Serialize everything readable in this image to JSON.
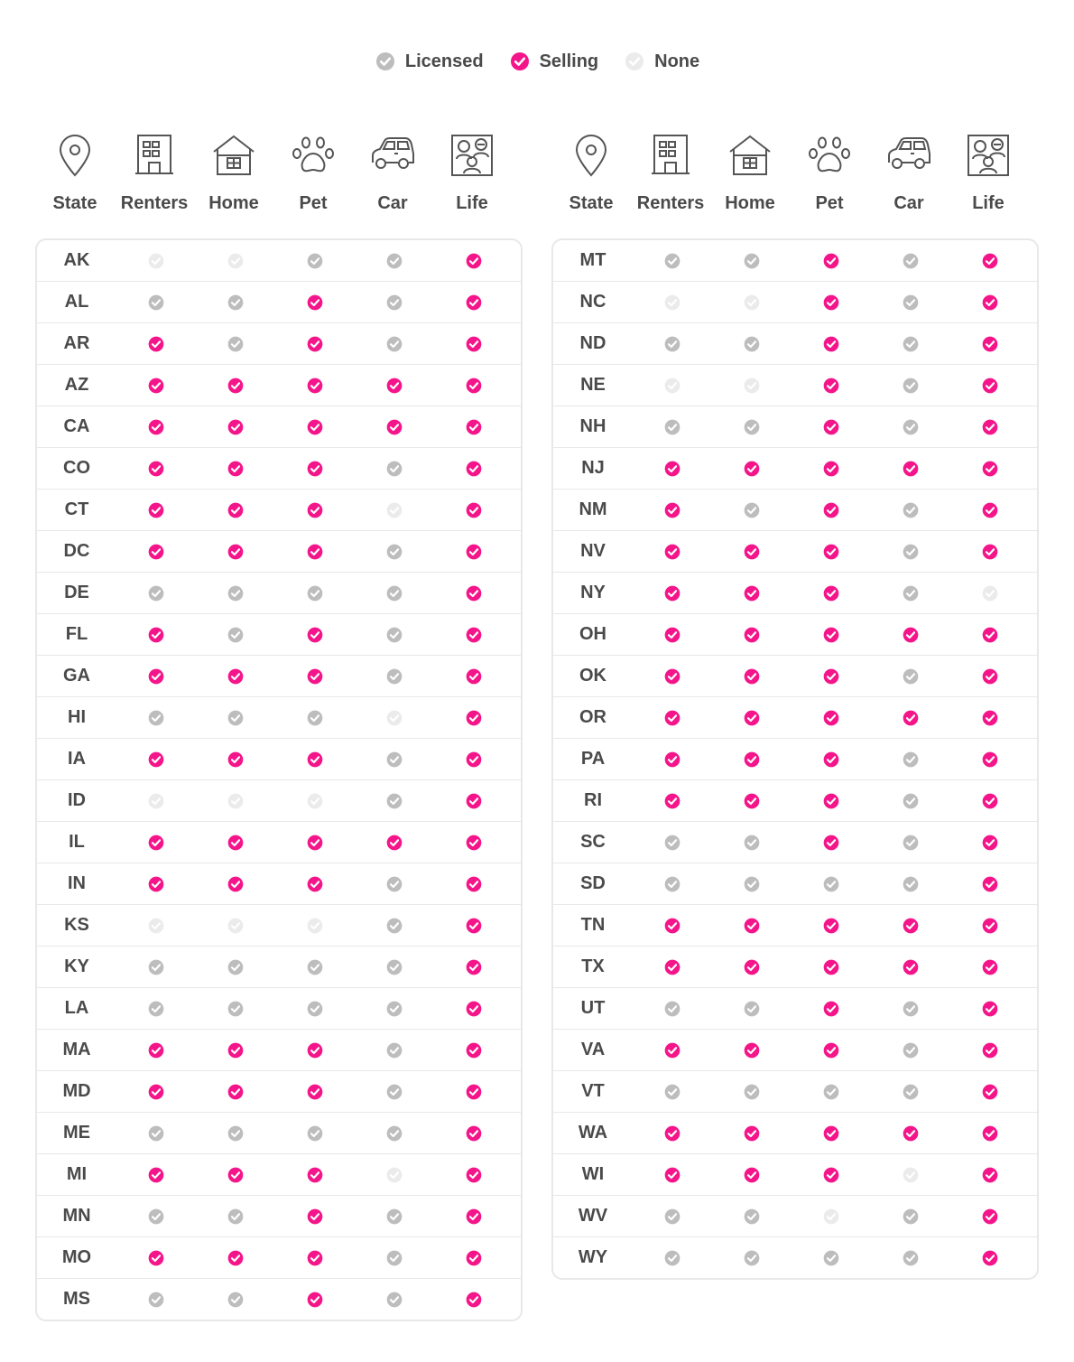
{
  "colors": {
    "licensed": "#bdbdbd",
    "selling": "#f5158a",
    "none": "#ebebeb"
  },
  "legend": [
    {
      "status": "licensed",
      "label": "Licensed"
    },
    {
      "status": "selling",
      "label": "Selling"
    },
    {
      "status": "none",
      "label": "None"
    }
  ],
  "columns": [
    {
      "label": "State",
      "icon": "location-pin-icon"
    },
    {
      "label": "Renters",
      "icon": "apartment-building-icon"
    },
    {
      "label": "Home",
      "icon": "house-icon"
    },
    {
      "label": "Pet",
      "icon": "paw-print-icon"
    },
    {
      "label": "Car",
      "icon": "car-icon"
    },
    {
      "label": "Life",
      "icon": "family-portrait-icon"
    }
  ],
  "left_table": [
    {
      "state": "AK",
      "status": [
        "none",
        "none",
        "licensed",
        "licensed",
        "selling"
      ]
    },
    {
      "state": "AL",
      "status": [
        "licensed",
        "licensed",
        "selling",
        "licensed",
        "selling"
      ]
    },
    {
      "state": "AR",
      "status": [
        "selling",
        "licensed",
        "selling",
        "licensed",
        "selling"
      ]
    },
    {
      "state": "AZ",
      "status": [
        "selling",
        "selling",
        "selling",
        "selling",
        "selling"
      ]
    },
    {
      "state": "CA",
      "status": [
        "selling",
        "selling",
        "selling",
        "selling",
        "selling"
      ]
    },
    {
      "state": "CO",
      "status": [
        "selling",
        "selling",
        "selling",
        "licensed",
        "selling"
      ]
    },
    {
      "state": "CT",
      "status": [
        "selling",
        "selling",
        "selling",
        "none",
        "selling"
      ]
    },
    {
      "state": "DC",
      "status": [
        "selling",
        "selling",
        "selling",
        "licensed",
        "selling"
      ]
    },
    {
      "state": "DE",
      "status": [
        "licensed",
        "licensed",
        "licensed",
        "licensed",
        "selling"
      ]
    },
    {
      "state": "FL",
      "status": [
        "selling",
        "licensed",
        "selling",
        "licensed",
        "selling"
      ]
    },
    {
      "state": "GA",
      "status": [
        "selling",
        "selling",
        "selling",
        "licensed",
        "selling"
      ]
    },
    {
      "state": "HI",
      "status": [
        "licensed",
        "licensed",
        "licensed",
        "none",
        "selling"
      ]
    },
    {
      "state": "IA",
      "status": [
        "selling",
        "selling",
        "selling",
        "licensed",
        "selling"
      ]
    },
    {
      "state": "ID",
      "status": [
        "none",
        "none",
        "none",
        "licensed",
        "selling"
      ]
    },
    {
      "state": "IL",
      "status": [
        "selling",
        "selling",
        "selling",
        "selling",
        "selling"
      ]
    },
    {
      "state": "IN",
      "status": [
        "selling",
        "selling",
        "selling",
        "licensed",
        "selling"
      ]
    },
    {
      "state": "KS",
      "status": [
        "none",
        "none",
        "none",
        "licensed",
        "selling"
      ]
    },
    {
      "state": "KY",
      "status": [
        "licensed",
        "licensed",
        "licensed",
        "licensed",
        "selling"
      ]
    },
    {
      "state": "LA",
      "status": [
        "licensed",
        "licensed",
        "licensed",
        "licensed",
        "selling"
      ]
    },
    {
      "state": "MA",
      "status": [
        "selling",
        "selling",
        "selling",
        "licensed",
        "selling"
      ]
    },
    {
      "state": "MD",
      "status": [
        "selling",
        "selling",
        "selling",
        "licensed",
        "selling"
      ]
    },
    {
      "state": "ME",
      "status": [
        "licensed",
        "licensed",
        "licensed",
        "licensed",
        "selling"
      ]
    },
    {
      "state": "MI",
      "status": [
        "selling",
        "selling",
        "selling",
        "none",
        "selling"
      ]
    },
    {
      "state": "MN",
      "status": [
        "licensed",
        "licensed",
        "selling",
        "licensed",
        "selling"
      ]
    },
    {
      "state": "MO",
      "status": [
        "selling",
        "selling",
        "selling",
        "licensed",
        "selling"
      ]
    },
    {
      "state": "MS",
      "status": [
        "licensed",
        "licensed",
        "selling",
        "licensed",
        "selling"
      ]
    }
  ],
  "right_table": [
    {
      "state": "MT",
      "status": [
        "licensed",
        "licensed",
        "selling",
        "licensed",
        "selling"
      ]
    },
    {
      "state": "NC",
      "status": [
        "none",
        "none",
        "selling",
        "licensed",
        "selling"
      ]
    },
    {
      "state": "ND",
      "status": [
        "licensed",
        "licensed",
        "selling",
        "licensed",
        "selling"
      ]
    },
    {
      "state": "NE",
      "status": [
        "none",
        "none",
        "selling",
        "licensed",
        "selling"
      ]
    },
    {
      "state": "NH",
      "status": [
        "licensed",
        "licensed",
        "selling",
        "licensed",
        "selling"
      ]
    },
    {
      "state": "NJ",
      "status": [
        "selling",
        "selling",
        "selling",
        "selling",
        "selling"
      ]
    },
    {
      "state": "NM",
      "status": [
        "selling",
        "licensed",
        "selling",
        "licensed",
        "selling"
      ]
    },
    {
      "state": "NV",
      "status": [
        "selling",
        "selling",
        "selling",
        "licensed",
        "selling"
      ]
    },
    {
      "state": "NY",
      "status": [
        "selling",
        "selling",
        "selling",
        "licensed",
        "none"
      ]
    },
    {
      "state": "OH",
      "status": [
        "selling",
        "selling",
        "selling",
        "selling",
        "selling"
      ]
    },
    {
      "state": "OK",
      "status": [
        "selling",
        "selling",
        "selling",
        "licensed",
        "selling"
      ]
    },
    {
      "state": "OR",
      "status": [
        "selling",
        "selling",
        "selling",
        "selling",
        "selling"
      ]
    },
    {
      "state": "PA",
      "status": [
        "selling",
        "selling",
        "selling",
        "licensed",
        "selling"
      ]
    },
    {
      "state": "RI",
      "status": [
        "selling",
        "selling",
        "selling",
        "licensed",
        "selling"
      ]
    },
    {
      "state": "SC",
      "status": [
        "licensed",
        "licensed",
        "selling",
        "licensed",
        "selling"
      ]
    },
    {
      "state": "SD",
      "status": [
        "licensed",
        "licensed",
        "licensed",
        "licensed",
        "selling"
      ]
    },
    {
      "state": "TN",
      "status": [
        "selling",
        "selling",
        "selling",
        "selling",
        "selling"
      ]
    },
    {
      "state": "TX",
      "status": [
        "selling",
        "selling",
        "selling",
        "selling",
        "selling"
      ]
    },
    {
      "state": "UT",
      "status": [
        "licensed",
        "licensed",
        "selling",
        "licensed",
        "selling"
      ]
    },
    {
      "state": "VA",
      "status": [
        "selling",
        "selling",
        "selling",
        "licensed",
        "selling"
      ]
    },
    {
      "state": "VT",
      "status": [
        "licensed",
        "licensed",
        "licensed",
        "licensed",
        "selling"
      ]
    },
    {
      "state": "WA",
      "status": [
        "selling",
        "selling",
        "selling",
        "selling",
        "selling"
      ]
    },
    {
      "state": "WI",
      "status": [
        "selling",
        "selling",
        "selling",
        "none",
        "selling"
      ]
    },
    {
      "state": "WV",
      "status": [
        "licensed",
        "licensed",
        "none",
        "licensed",
        "selling"
      ]
    },
    {
      "state": "WY",
      "status": [
        "licensed",
        "licensed",
        "licensed",
        "licensed",
        "selling"
      ]
    }
  ]
}
